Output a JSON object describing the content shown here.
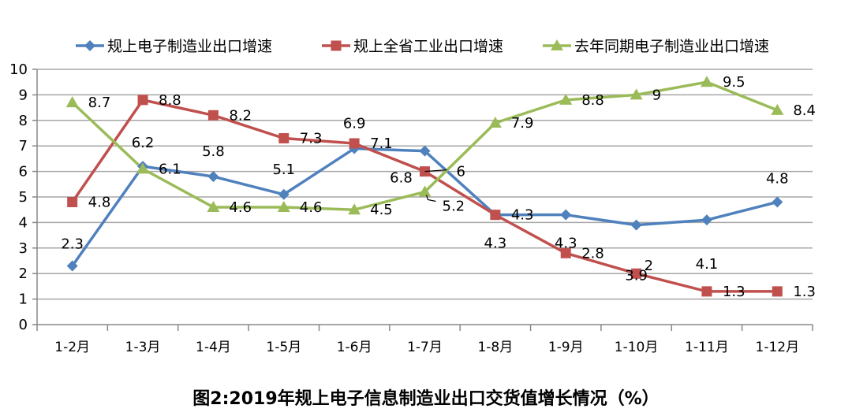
{
  "chart_data": {
    "type": "line",
    "title": "图2:2019年规上电子信息制造业出口交货值增长情况（%）",
    "xlabel": "",
    "ylabel": "",
    "categories": [
      "1-2月",
      "1-3月",
      "1-4月",
      "1-5月",
      "1-6月",
      "1-7月",
      "1-8月",
      "1-9月",
      "1-10月",
      "1-11月",
      "1-12月"
    ],
    "ylim": [
      0,
      10
    ],
    "yticks": [
      "0",
      "1",
      "2",
      "3",
      "4",
      "5",
      "6",
      "7",
      "8",
      "9",
      "10"
    ],
    "grid": true,
    "legend_position": "top",
    "series": [
      {
        "name": "规上电子制造业出口增速",
        "color": "#4f81bd",
        "marker": "diamond",
        "values": [
          2.3,
          6.2,
          5.8,
          5.1,
          6.9,
          6.8,
          4.3,
          4.3,
          3.9,
          4.1,
          4.8
        ],
        "labels": [
          "2.3",
          "6.2",
          "5.8",
          "5.1",
          "6.9",
          "6.8",
          "4.3",
          "4.3",
          "3.9",
          "4.1",
          "4.8"
        ]
      },
      {
        "name": "规上全省工业出口增速",
        "color": "#c0504d",
        "marker": "square",
        "values": [
          4.8,
          8.8,
          8.2,
          7.3,
          7.1,
          6,
          4.3,
          2.8,
          2,
          1.3,
          1.3
        ],
        "labels": [
          "4.8",
          "8.8",
          "8.2",
          "7.3",
          "7.1",
          "6",
          "4.3",
          "2.8",
          "2",
          "1.3",
          "1.3"
        ]
      },
      {
        "name": "去年同期电子制造业出口增速",
        "color": "#9bbb59",
        "marker": "triangle",
        "values": [
          8.7,
          6.1,
          4.6,
          4.6,
          4.5,
          5.2,
          7.9,
          8.8,
          9,
          9.5,
          8.4
        ],
        "labels": [
          "8.7",
          "6.1",
          "4.6",
          "4.6",
          "4.5",
          "5.2",
          "7.9",
          "8.8",
          "9",
          "9.5",
          "8.4"
        ]
      }
    ]
  }
}
